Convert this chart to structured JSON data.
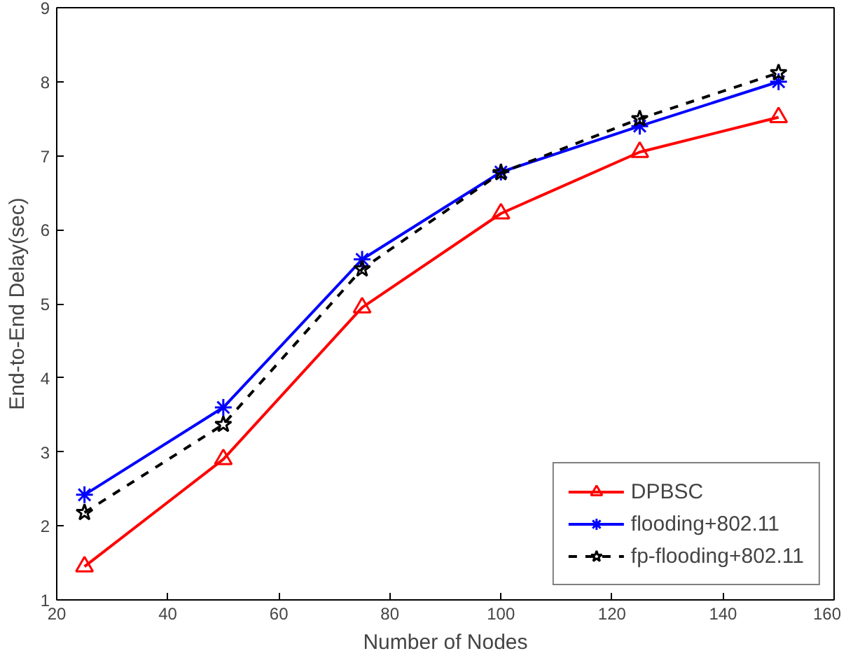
{
  "chart_data": {
    "type": "line",
    "xlabel": "Number of Nodes",
    "ylabel": "End-to-End Delay(sec)",
    "x": [
      25,
      50,
      75,
      100,
      125,
      150
    ],
    "xlim": [
      20,
      160
    ],
    "xticks": [
      20,
      40,
      60,
      80,
      100,
      120,
      140,
      160
    ],
    "ylim": [
      1,
      9
    ],
    "yticks": [
      1,
      2,
      3,
      4,
      5,
      6,
      7,
      8,
      9
    ],
    "grid": false,
    "legend": "bottom right",
    "series": [
      {
        "name": "DPBSC",
        "color": "#ff0000",
        "marker": "triangle",
        "line_style": "solid",
        "values": [
          1.45,
          2.9,
          4.95,
          6.22,
          7.05,
          7.52
        ]
      },
      {
        "name": "flooding+802.11",
        "color": "#0000ff",
        "marker": "cross",
        "line_style": "solid",
        "values": [
          2.42,
          3.6,
          5.6,
          6.78,
          7.4,
          8.0
        ]
      },
      {
        "name": "fp-flooding+802.11",
        "color": "#000000",
        "marker": "star",
        "line_style": "dashed",
        "values": [
          2.18,
          3.37,
          5.47,
          6.77,
          7.5,
          8.12
        ]
      }
    ]
  }
}
